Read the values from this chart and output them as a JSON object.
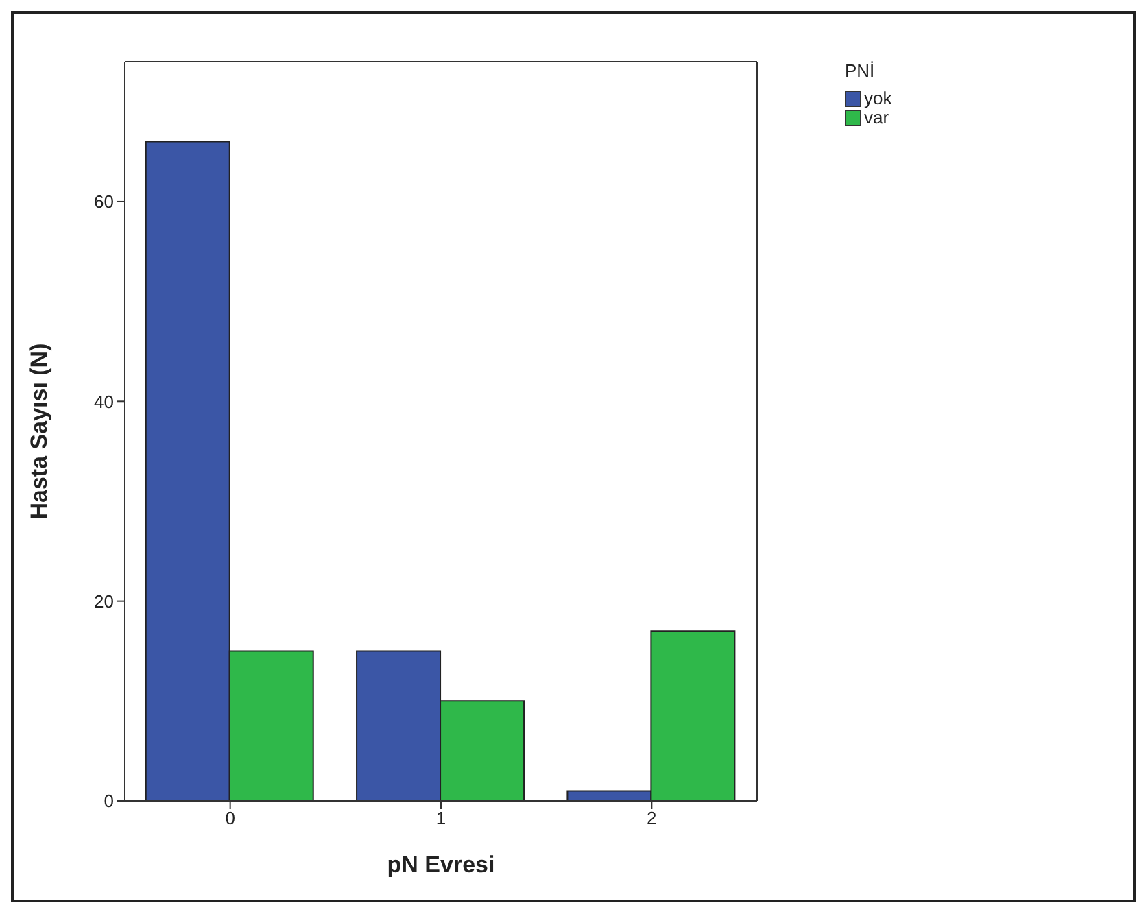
{
  "chart_data": {
    "type": "bar",
    "xlabel": "pN Evresi",
    "ylabel": "Hasta Sayısı (N)",
    "legend_title": "PNİ",
    "legend": "top right",
    "grid": false,
    "categories": [
      "0",
      "1",
      "2"
    ],
    "series": [
      {
        "name": "yok",
        "color": "#3b56a6",
        "values": [
          66,
          15,
          1
        ]
      },
      {
        "name": "var",
        "color": "#2fb84a",
        "values": [
          15,
          10,
          17
        ]
      }
    ],
    "ylim": [
      0,
      74
    ],
    "yticks": [
      0,
      20,
      40,
      60
    ]
  }
}
